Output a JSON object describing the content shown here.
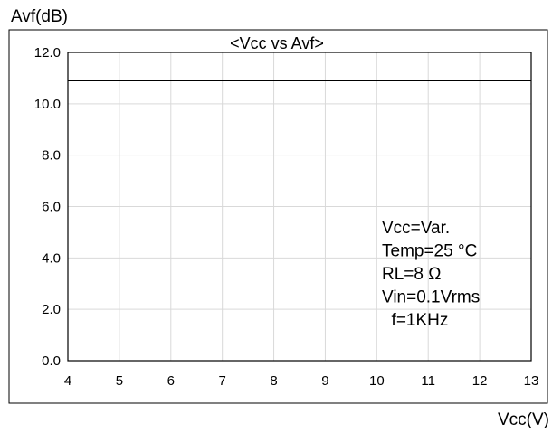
{
  "chart_data": {
    "type": "line",
    "title": "<Vcc vs Avf>",
    "xlabel": "Vcc(V)",
    "ylabel": "Avf(dB)",
    "xlim": [
      4,
      13
    ],
    "ylim": [
      0,
      12
    ],
    "x_ticks": [
      "4",
      "5",
      "6",
      "7",
      "8",
      "9",
      "10",
      "11",
      "12",
      "13"
    ],
    "y_ticks": [
      "0.0",
      "2.0",
      "4.0",
      "6.0",
      "8.0",
      "10.0",
      "12.0"
    ],
    "grid": true,
    "series": [
      {
        "x": [
          4,
          13
        ],
        "values": [
          10.9,
          10.9
        ]
      }
    ],
    "annotations": [
      "Vcc=Var.",
      "Temp=25 °C",
      "RL=8 Ω",
      "Vin=0.1Vrms",
      "  f=1KHz"
    ],
    "colors": {
      "line": "#000000",
      "grid": "#d9d9d9",
      "frame": "#000000"
    }
  }
}
